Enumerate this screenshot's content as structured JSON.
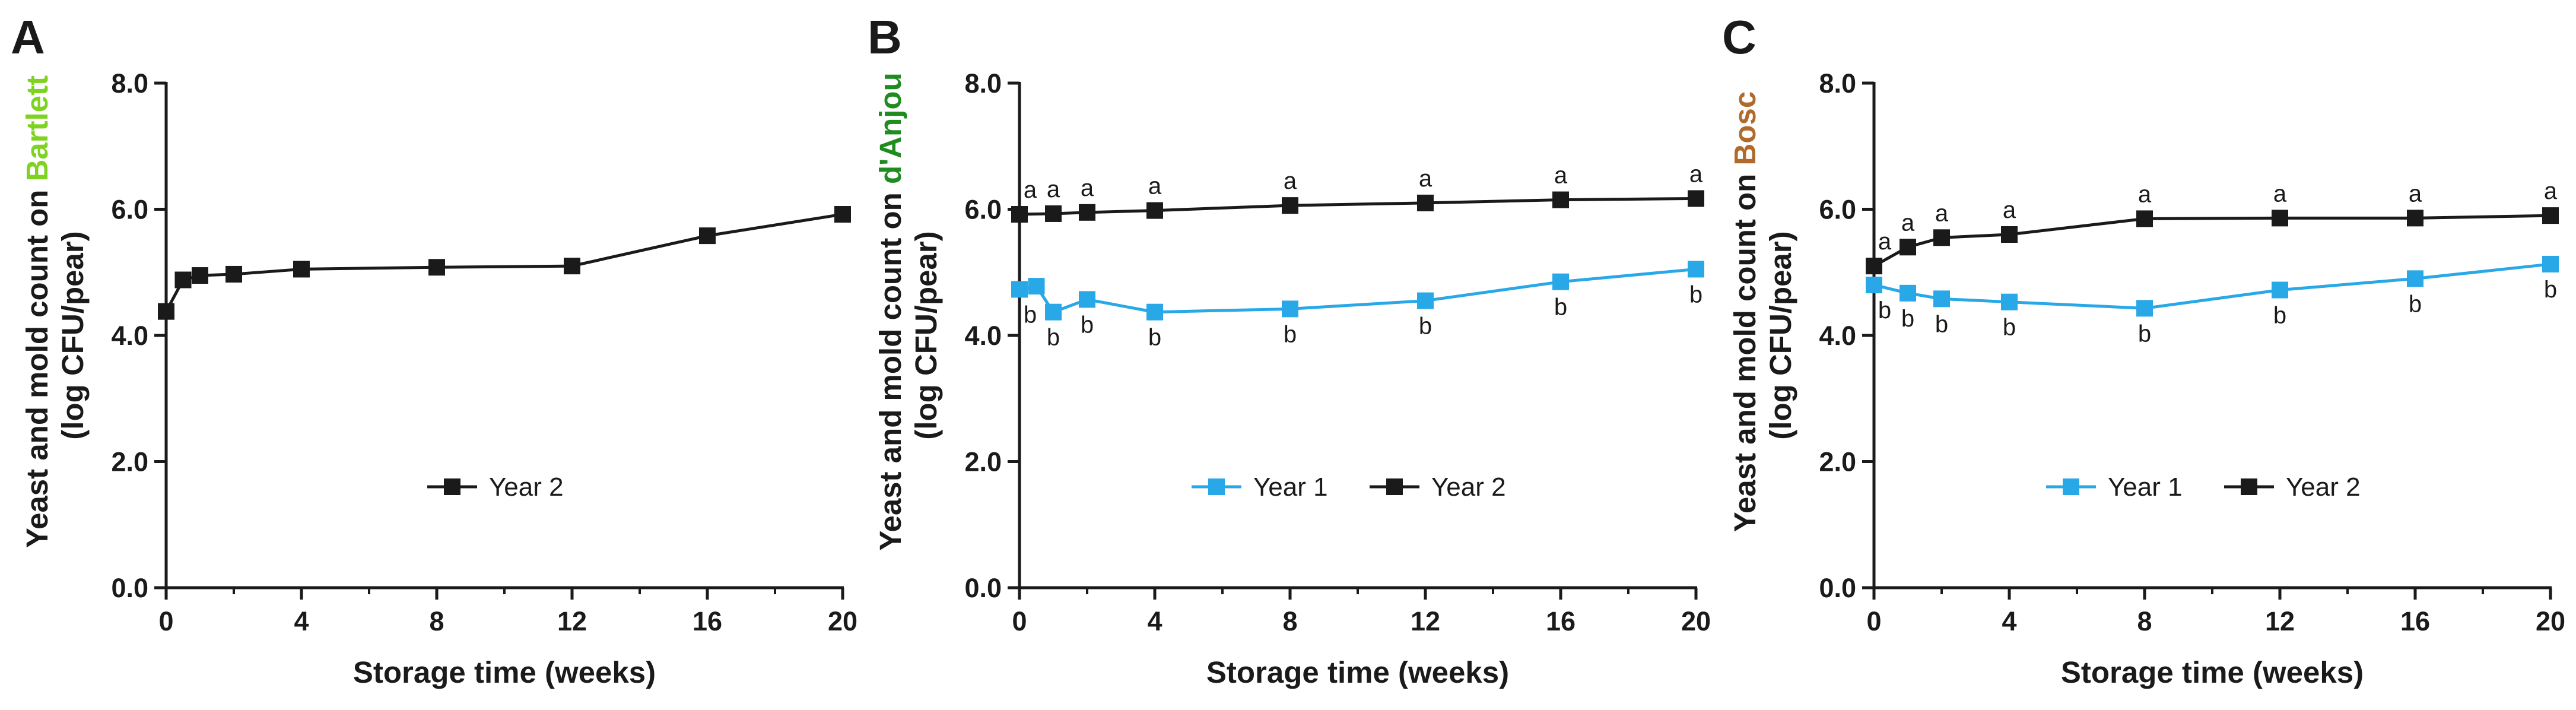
{
  "chart_data": [
    {
      "type": "line",
      "panel_label": "A",
      "cultivar": "Bartlett",
      "cultivar_color": "#7ed321",
      "ylabel_line1": "Yeast and mold count on",
      "ylabel_line2": "(log CFU/pear)",
      "xlabel": "Storage time (weeks)",
      "ylim": [
        0,
        8
      ],
      "yticks": [
        "0.0",
        "2.0",
        "4.0",
        "6.0",
        "8.0"
      ],
      "xlim": [
        0,
        20
      ],
      "xticks": [
        "0",
        "4",
        "8",
        "12",
        "16",
        "20"
      ],
      "legend_position": "bottom-center",
      "series": [
        {
          "name": "Year 2",
          "color": "#1a1a1a",
          "x": [
            0,
            0.5,
            1,
            2,
            4,
            8,
            12,
            16,
            20
          ],
          "y": [
            4.38,
            4.88,
            4.95,
            4.97,
            5.05,
            5.08,
            5.1,
            5.58,
            5.92
          ],
          "letters": []
        }
      ]
    },
    {
      "type": "line",
      "panel_label": "B",
      "cultivar": "d'Anjou",
      "cultivar_color": "#1e8c1e",
      "ylabel_line1": "Yeast and mold count on",
      "ylabel_line2": "(log CFU/pear)",
      "xlabel": "Storage time (weeks)",
      "ylim": [
        0,
        8
      ],
      "yticks": [
        "0.0",
        "2.0",
        "4.0",
        "6.0",
        "8.0"
      ],
      "xlim": [
        0,
        20
      ],
      "xticks": [
        "0",
        "4",
        "8",
        "12",
        "16",
        "20"
      ],
      "legend_position": "bottom-center",
      "series": [
        {
          "name": "Year 1",
          "color": "#29a8e8",
          "x": [
            0,
            0.5,
            1,
            2,
            4,
            8,
            12,
            16,
            20
          ],
          "y": [
            4.73,
            4.78,
            4.37,
            4.57,
            4.37,
            4.42,
            4.55,
            4.85,
            5.05
          ],
          "letters": [
            "b",
            "",
            "b",
            "b",
            "b",
            "b",
            "b",
            "b",
            "b"
          ]
        },
        {
          "name": "Year 2",
          "color": "#1a1a1a",
          "x": [
            0,
            1,
            2,
            4,
            8,
            12,
            16,
            20
          ],
          "y": [
            5.92,
            5.93,
            5.95,
            5.98,
            6.06,
            6.1,
            6.15,
            6.17
          ],
          "letters": [
            "a",
            "a",
            "a",
            "a",
            "a",
            "a",
            "a",
            "a"
          ]
        }
      ]
    },
    {
      "type": "line",
      "panel_label": "C",
      "cultivar": "Bosc",
      "cultivar_color": "#b06a2c",
      "ylabel_line1": "Yeast and mold count on",
      "ylabel_line2": "(log CFU/pear)",
      "xlabel": "Storage time (weeks)",
      "ylim": [
        0,
        8
      ],
      "yticks": [
        "0.0",
        "2.0",
        "4.0",
        "6.0",
        "8.0"
      ],
      "xlim": [
        0,
        20
      ],
      "xticks": [
        "0",
        "4",
        "8",
        "12",
        "16",
        "20"
      ],
      "legend_position": "bottom-center",
      "series": [
        {
          "name": "Year 1",
          "color": "#29a8e8",
          "x": [
            0,
            1,
            2,
            4,
            8,
            12,
            16,
            20
          ],
          "y": [
            4.8,
            4.67,
            4.58,
            4.53,
            4.43,
            4.72,
            4.9,
            5.13
          ],
          "letters": [
            "b",
            "b",
            "b",
            "b",
            "b",
            "b",
            "b",
            "b"
          ]
        },
        {
          "name": "Year 2",
          "color": "#1a1a1a",
          "x": [
            0,
            1,
            2,
            4,
            8,
            12,
            16,
            20
          ],
          "y": [
            5.1,
            5.4,
            5.55,
            5.6,
            5.85,
            5.86,
            5.86,
            5.9
          ],
          "letters": [
            "a",
            "a",
            "a",
            "a",
            "a",
            "a",
            "a",
            "a"
          ]
        }
      ]
    }
  ]
}
